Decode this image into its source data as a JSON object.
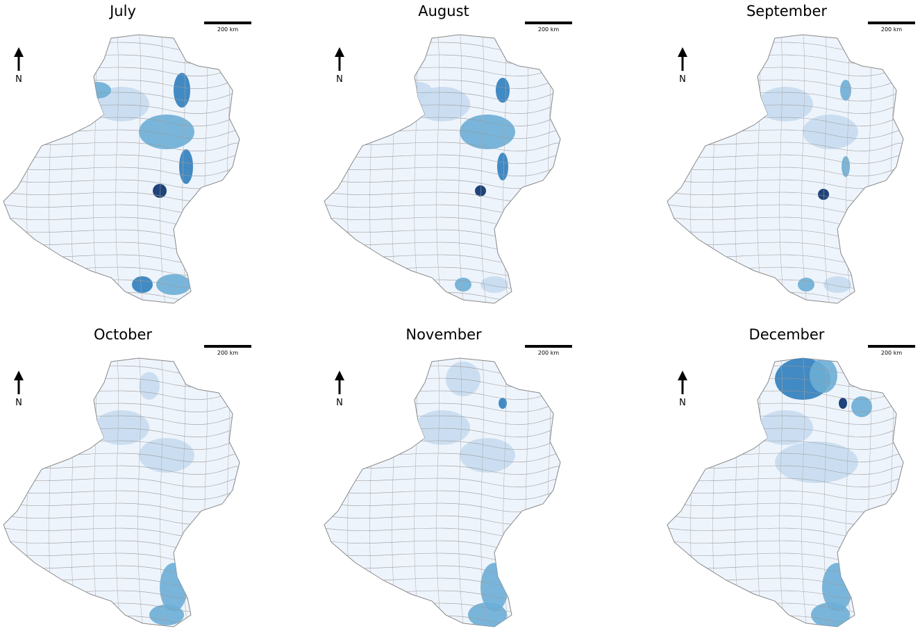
{
  "panels": [
    {
      "title": "July",
      "scale_label": "200 km",
      "north_label": "N"
    },
    {
      "title": "August",
      "scale_label": "200 km",
      "north_label": "N"
    },
    {
      "title": "September",
      "scale_label": "200 km",
      "north_label": "N"
    },
    {
      "title": "October",
      "scale_label": "200 km",
      "north_label": "N"
    },
    {
      "title": "November",
      "scale_label": "200 km",
      "north_label": "N"
    },
    {
      "title": "December",
      "scale_label": "200 km",
      "north_label": "N"
    }
  ]
}
